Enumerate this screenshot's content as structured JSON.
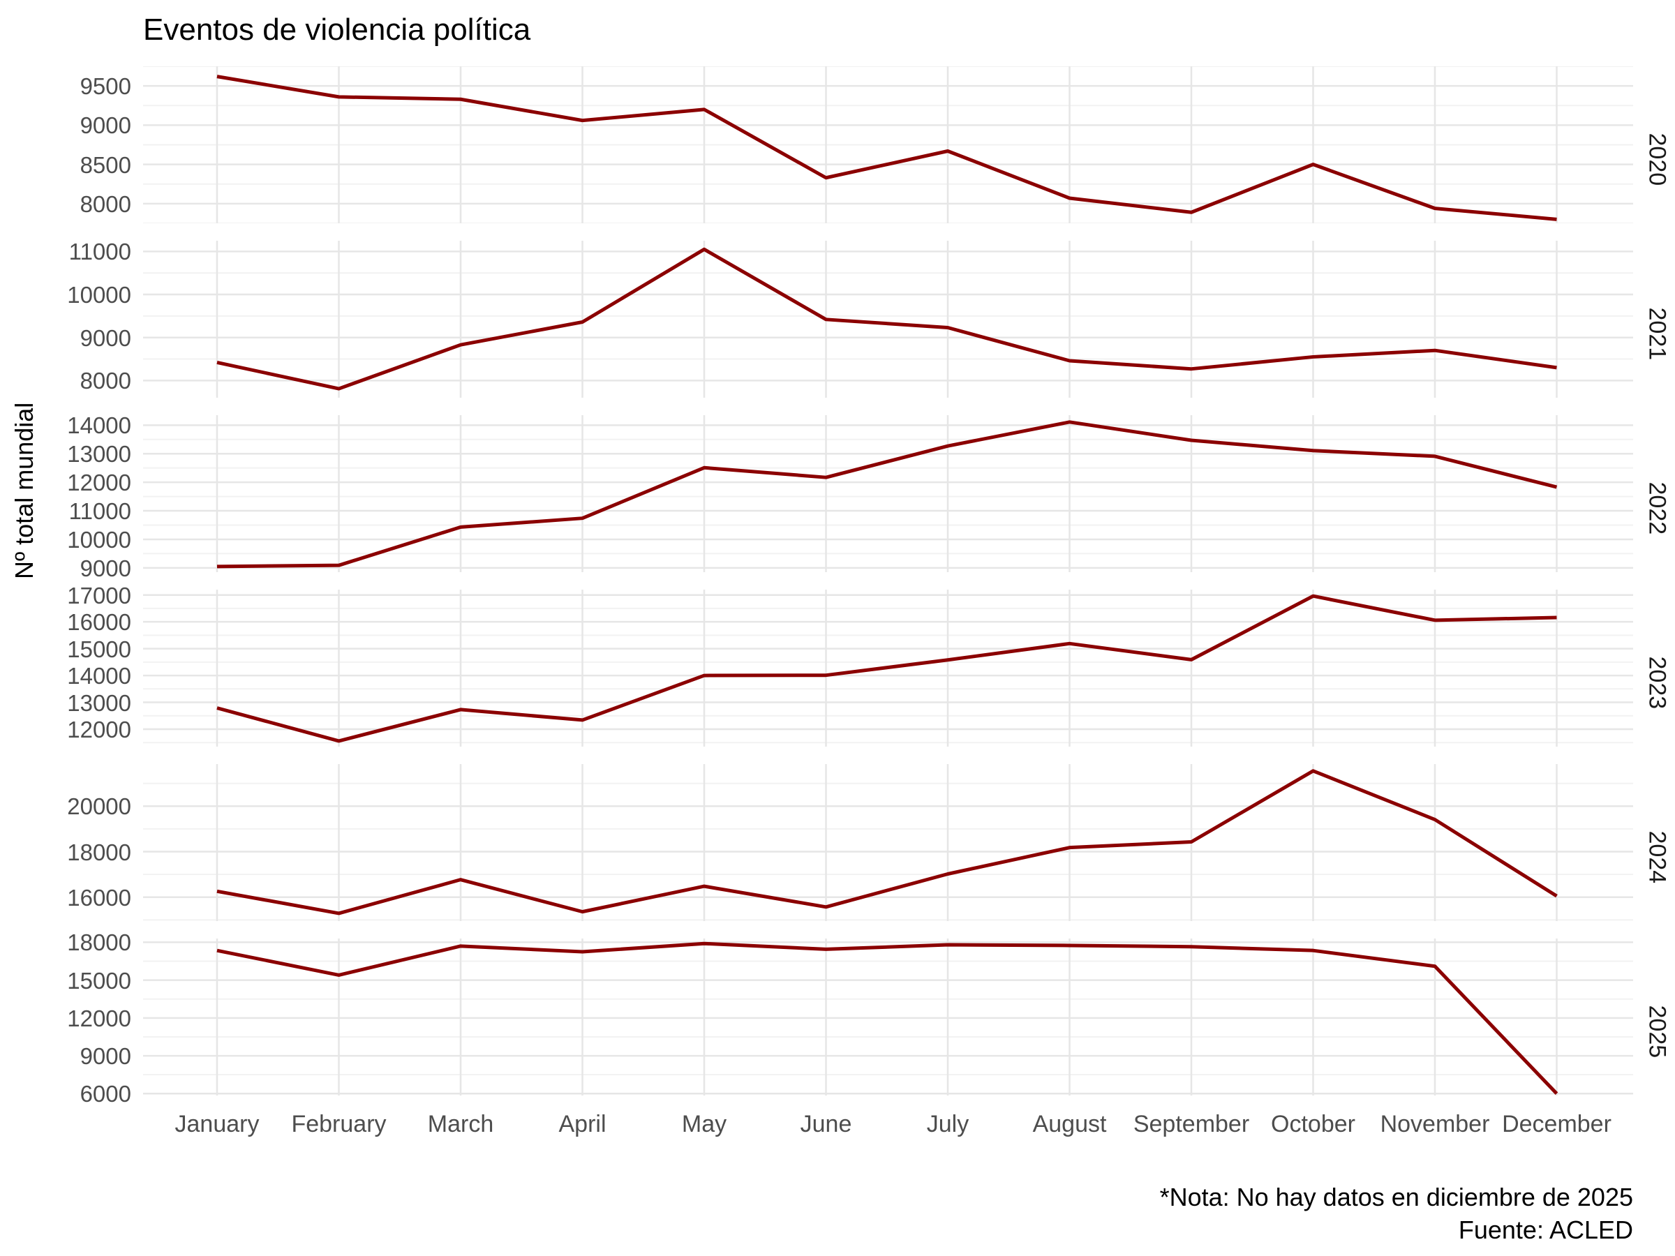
{
  "title": "Eventos de violencia política",
  "y_axis_label": "Nº total mundial",
  "caption": {
    "note": "*Nota: No hay datos en diciembre de 2025",
    "source": "Fuente: ACLED"
  },
  "colors": {
    "line": "#8B0000",
    "grid_major": "#e6e6e6",
    "grid_minor": "#f2f2f2",
    "axis_text": "#4d4d4d",
    "strip_text": "#1a1a1a",
    "background": "#ffffff"
  },
  "chart_data": {
    "type": "line",
    "title": "Eventos de violencia política",
    "xlabel": "",
    "ylabel": "Nº total mundial",
    "grid": true,
    "legend_position": "none",
    "facet_layout": "rows_by_year_free_y",
    "categories": [
      "January",
      "February",
      "March",
      "April",
      "May",
      "June",
      "July",
      "August",
      "September",
      "October",
      "November",
      "December"
    ],
    "series": [
      {
        "name": "2020",
        "values": [
          9620,
          9360,
          9330,
          9060,
          9200,
          8330,
          8670,
          8070,
          7890,
          8500,
          7940,
          7800
        ],
        "yticks": [
          9500,
          9000,
          8500,
          8000
        ],
        "minor_ticks": [
          9750,
          9250,
          8750,
          8250,
          7750
        ],
        "ylim": [
          7750,
          9750
        ]
      },
      {
        "name": "2021",
        "values": [
          8420,
          7810,
          8830,
          9360,
          11050,
          9420,
          9230,
          8460,
          8270,
          8550,
          8700,
          8300
        ],
        "yticks": [
          11000,
          10000,
          9000,
          8000
        ],
        "minor_ticks": [
          10500,
          9500,
          8500
        ],
        "ylim": [
          7600,
          11250
        ]
      },
      {
        "name": "2022",
        "values": [
          9050,
          9090,
          10430,
          10740,
          12510,
          12170,
          13270,
          14110,
          13470,
          13110,
          12910,
          11830
        ],
        "yticks": [
          14000,
          13000,
          12000,
          11000,
          10000,
          9000
        ],
        "minor_ticks": [
          13500,
          12500,
          11500,
          10500,
          9500
        ],
        "ylim": [
          8850,
          14350
        ]
      },
      {
        "name": "2023",
        "values": [
          12790,
          11560,
          12730,
          12340,
          14000,
          14010,
          14580,
          15190,
          14590,
          16960,
          16060,
          16160
        ],
        "yticks": [
          17000,
          16000,
          15000,
          14000,
          13000,
          12000
        ],
        "minor_ticks": [
          16500,
          15500,
          14500,
          13500,
          12500,
          11500
        ],
        "ylim": [
          11350,
          17200
        ]
      },
      {
        "name": "2024",
        "values": [
          16260,
          15290,
          16770,
          15360,
          16480,
          15570,
          17020,
          18180,
          18430,
          21550,
          19410,
          16050
        ],
        "yticks": [
          20000,
          18000,
          16000
        ],
        "minor_ticks": [
          21000,
          19000,
          17000,
          15000
        ],
        "ylim": [
          14950,
          21850
        ]
      },
      {
        "name": "2025",
        "values": [
          17350,
          15400,
          17700,
          17250,
          17900,
          17450,
          17800,
          17750,
          17650,
          17350,
          16100,
          6000
        ],
        "yticks": [
          18000,
          15000,
          12000,
          9000,
          6000
        ],
        "minor_ticks": [
          16500,
          13500,
          10500,
          7500
        ],
        "ylim": [
          5850,
          18300
        ]
      }
    ]
  }
}
